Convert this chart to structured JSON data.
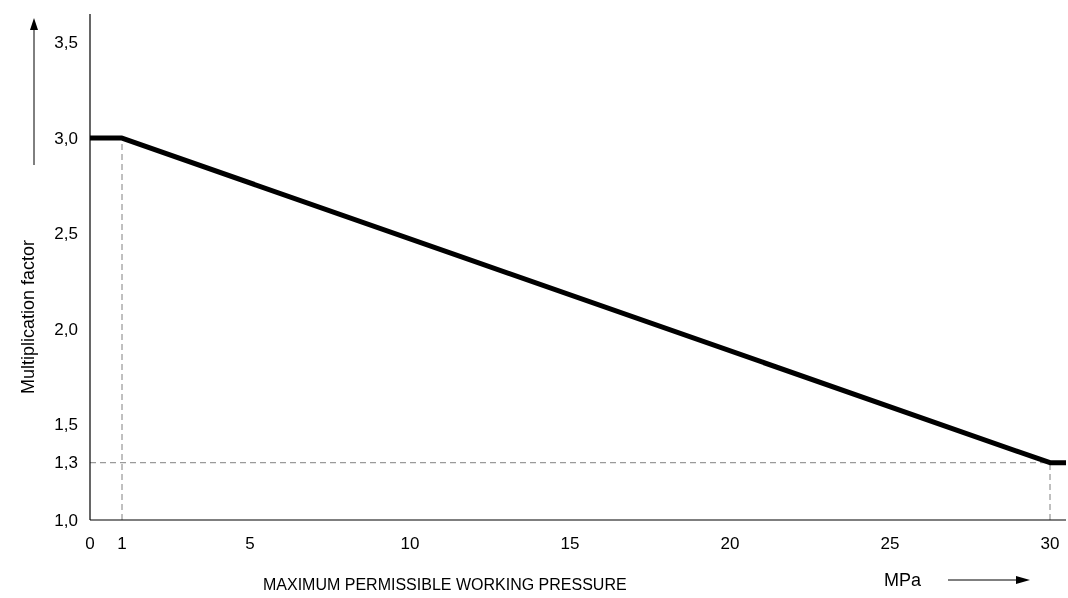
{
  "chart_data": {
    "type": "line",
    "xlabel": "MAXIMUM PERMISSIBLE WORKING PRESSURE",
    "ylabel": "Multiplication factor",
    "x": [
      0,
      1,
      30,
      30.5
    ],
    "series": [
      {
        "color": "#000000",
        "values": [
          3.0,
          3.0,
          1.3,
          1.3
        ]
      }
    ],
    "xlim": [
      0,
      30.5
    ],
    "xticks": [
      0,
      1,
      5,
      10,
      15,
      20,
      25,
      30
    ],
    "ylim": [
      1,
      3.65
    ],
    "yticks": [
      {
        "value": 1,
        "label": "1,0"
      },
      {
        "value": 1.3,
        "label": "1,3"
      },
      {
        "value": 1.5,
        "label": "1,5"
      },
      {
        "value": 2,
        "label": "2,0"
      },
      {
        "value": 2.5,
        "label": "2,5"
      },
      {
        "value": 3,
        "label": "3,0"
      },
      {
        "value": 3.5,
        "label": "3,5"
      }
    ],
    "ref_lines": [
      {
        "axis": "x",
        "value": 1,
        "color": "#808080",
        "line_style": "dashed"
      },
      {
        "axis": "y",
        "value": 1.3,
        "color": "#808080",
        "line_style": "dashed"
      },
      {
        "axis": "x",
        "value": 30,
        "color": "#808080",
        "line_style": "dashed"
      }
    ],
    "annotations": [
      "MPa"
    ],
    "grid": false,
    "line_style": "solid"
  }
}
